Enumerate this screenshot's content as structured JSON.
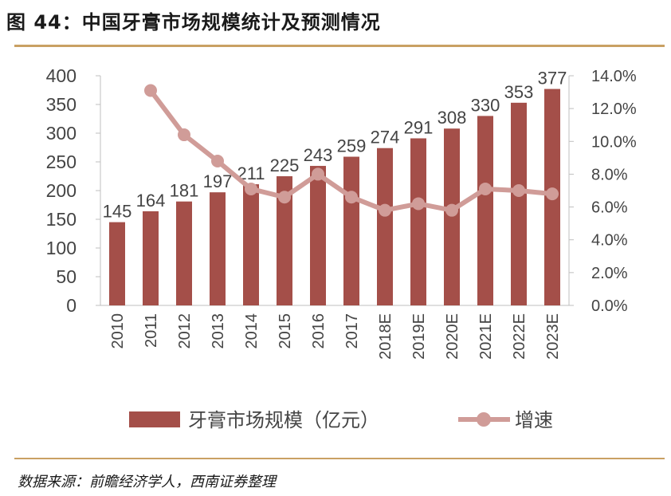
{
  "header": {
    "figure_title": "图 44：中国牙膏市场规模统计及预测情况"
  },
  "footer": {
    "source": "数据来源：前瞻经济学人，西南证券整理"
  },
  "colors": {
    "bar": "#A44F49",
    "line": "#D09C98",
    "axis": "#bfbfbf",
    "rule": "#C9A063",
    "text": "#444444"
  },
  "chart_data": {
    "type": "bar",
    "title": "中国牙膏市场规模统计及预测情况",
    "categories": [
      "2010",
      "2011",
      "2012",
      "2013",
      "2014",
      "2015",
      "2016",
      "2017",
      "2018E",
      "2019E",
      "2020E",
      "2021E",
      "2022E",
      "2023E"
    ],
    "series": [
      {
        "name": "牙膏市场规模（亿元）",
        "type": "bar",
        "axis": "left",
        "values": [
          145,
          164,
          181,
          197,
          211,
          225,
          243,
          259,
          274,
          291,
          308,
          330,
          353,
          377
        ],
        "labels": [
          "145",
          "164",
          "181",
          "197",
          "211",
          "225",
          "243",
          "259",
          "274",
          "291",
          "308",
          "330",
          "353",
          "377"
        ]
      },
      {
        "name": "增速",
        "type": "line",
        "axis": "right",
        "marker": "circle",
        "values": [
          null,
          13.1,
          10.4,
          8.8,
          7.1,
          6.6,
          8.0,
          6.6,
          5.8,
          6.2,
          5.8,
          7.1,
          7.0,
          6.8
        ]
      }
    ],
    "y_left": {
      "min": 0,
      "max": 400,
      "step": 50,
      "ticks": [
        "0",
        "50",
        "100",
        "150",
        "200",
        "250",
        "300",
        "350",
        "400"
      ]
    },
    "y_right": {
      "min": 0,
      "max": 14,
      "step": 2,
      "ticks": [
        "0.0%",
        "2.0%",
        "4.0%",
        "6.0%",
        "8.0%",
        "10.0%",
        "12.0%",
        "14.0%"
      ]
    },
    "legend": {
      "position": "bottom",
      "items": [
        "牙膏市场规模（亿元）",
        "增速"
      ]
    },
    "grid": false
  }
}
